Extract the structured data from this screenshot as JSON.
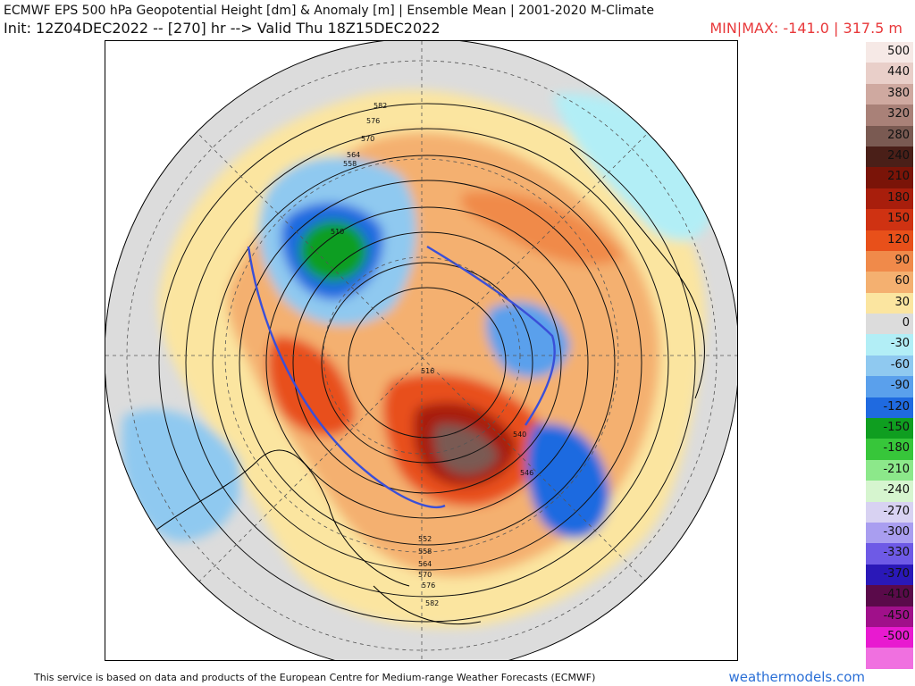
{
  "header": {
    "title": "ECMWF EPS 500 hPa Geopotential Height [dm] & Anomaly [m] | Ensemble Mean | 2001-2020 M-Climate",
    "init_line": "Init: 12Z04DEC2022 -- [270] hr --> Valid Thu 18Z15DEC2022",
    "minmax": "MIN|MAX: -141.0 | 317.5 m"
  },
  "contour_labels": [
    "582",
    "576",
    "570",
    "564",
    "558",
    "516",
    "510",
    "540",
    "546",
    "552",
    "558",
    "564",
    "570",
    "576",
    "582"
  ],
  "legend": [
    {
      "label": "500",
      "color": "#f6e9e6"
    },
    {
      "label": "440",
      "color": "#e9cfc9"
    },
    {
      "label": "380",
      "color": "#cfa9a0"
    },
    {
      "label": "320",
      "color": "#a98178"
    },
    {
      "label": "280",
      "color": "#7a5a52"
    },
    {
      "label": "240",
      "color": "#4a1f18"
    },
    {
      "label": "210",
      "color": "#7a1408"
    },
    {
      "label": "180",
      "color": "#a81e0c"
    },
    {
      "label": "150",
      "color": "#cf3212"
    },
    {
      "label": "120",
      "color": "#e8501a"
    },
    {
      "label": "90",
      "color": "#f08a4a"
    },
    {
      "label": "60",
      "color": "#f4b070"
    },
    {
      "label": "30",
      "color": "#fbe5a0"
    },
    {
      "label": "0",
      "color": "#dcdcdc"
    },
    {
      "label": "-30",
      "color": "#b2eef6"
    },
    {
      "label": "-60",
      "color": "#8fc9f0"
    },
    {
      "label": "-90",
      "color": "#5aa0ec"
    },
    {
      "label": "-120",
      "color": "#1f6ae0"
    },
    {
      "label": "-150",
      "color": "#0f9e20"
    },
    {
      "label": "-180",
      "color": "#37c63a"
    },
    {
      "label": "-210",
      "color": "#8ce88a"
    },
    {
      "label": "-240",
      "color": "#d6f5cf"
    },
    {
      "label": "-270",
      "color": "#d8d2f2"
    },
    {
      "label": "-300",
      "color": "#a99ef0"
    },
    {
      "label": "-330",
      "color": "#6e5ae6"
    },
    {
      "label": "-370",
      "color": "#2a18b8"
    },
    {
      "label": "-410",
      "color": "#5a0a4a"
    },
    {
      "label": "-450",
      "color": "#a0108a"
    },
    {
      "label": "-500",
      "color": "#e81ad0"
    },
    {
      "label": "",
      "color": "#f070e0"
    }
  ],
  "footer": {
    "credit": "This service is based on data and products of the European Centre for Medium-range Weather Forecasts (ECMWF)",
    "site": "weathermodels.com"
  }
}
